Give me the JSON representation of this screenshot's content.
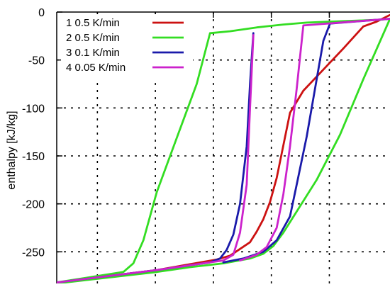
{
  "chart_data": {
    "type": "line",
    "title": "",
    "xlabel": "",
    "ylabel": "enthalpy [kJ/kg]",
    "ylim": [
      -283,
      0
    ],
    "xlim": [
      0,
      1
    ],
    "x_ticks_labeled": false,
    "y_ticks": [
      0,
      -50,
      -100,
      -150,
      -200,
      -250
    ],
    "y_tick_labels": [
      "0",
      "-50",
      "-100",
      "-150",
      "-200",
      "-250"
    ],
    "grid": true,
    "legend_position": "top-left",
    "series": [
      {
        "name": "1  0.5 K/min",
        "color": "#cc1111",
        "x": [
          0.0,
          0.3,
          0.48,
          0.52,
          0.58,
          0.6,
          0.62,
          0.64,
          0.66,
          0.68,
          0.7,
          0.74,
          0.8,
          0.86,
          0.92,
          0.96,
          1.0
        ],
        "y": [
          -282,
          -269,
          -258,
          -254,
          -240,
          -229,
          -216,
          -198,
          -173,
          -139,
          -105,
          -82,
          -60,
          -38,
          -15,
          -10,
          -3
        ]
      },
      {
        "name": "2  0.5 K/min",
        "color": "#33dd22",
        "x": [
          0.0,
          0.2,
          0.23,
          0.26,
          0.3,
          0.37,
          0.42,
          0.46,
          0.52,
          0.6,
          0.68,
          0.75,
          0.82,
          0.9,
          0.97,
          1.0,
          0.92,
          0.85,
          0.78,
          0.72,
          0.68,
          0.65,
          0.62,
          0.58,
          0.5,
          0.4,
          0.3,
          0.0
        ],
        "y": [
          -282,
          -271,
          -262,
          -238,
          -188,
          -122,
          -75,
          -22,
          -20,
          -16,
          -13,
          -11,
          -10,
          -9,
          -8,
          -7,
          -70,
          -128,
          -175,
          -208,
          -230,
          -244,
          -252,
          -257,
          -262,
          -266,
          -271,
          -283
        ]
      },
      {
        "name": "3  0.1 K/min",
        "color": "#1a1aaa",
        "x": [
          0.0,
          0.3,
          0.46,
          0.49,
          0.51,
          0.53,
          0.55,
          0.57,
          0.58,
          0.59
        ],
        "y": [
          -282,
          -269,
          -261,
          -257,
          -248,
          -232,
          -200,
          -140,
          -75,
          -22
        ],
        "x2": [
          0.5,
          0.56,
          0.62,
          0.66,
          0.7,
          0.72,
          0.75,
          0.78,
          0.8,
          0.82,
          1.0
        ],
        "y2": [
          -261,
          -257,
          -250,
          -238,
          -213,
          -180,
          -130,
          -70,
          -30,
          -12,
          -7
        ]
      },
      {
        "name": "4  0.05 K/min",
        "color": "#cc22cc",
        "x": [
          0.0,
          0.3,
          0.5,
          0.53,
          0.55,
          0.57,
          0.58,
          0.59
        ],
        "y": [
          -282,
          -269,
          -259,
          -253,
          -230,
          -180,
          -100,
          -24
        ],
        "x2": [
          0.55,
          0.6,
          0.63,
          0.66,
          0.68,
          0.7,
          0.72,
          0.74,
          1.0
        ],
        "y2": [
          -259,
          -253,
          -245,
          -225,
          -190,
          -140,
          -80,
          -14,
          -7
        ]
      }
    ]
  }
}
